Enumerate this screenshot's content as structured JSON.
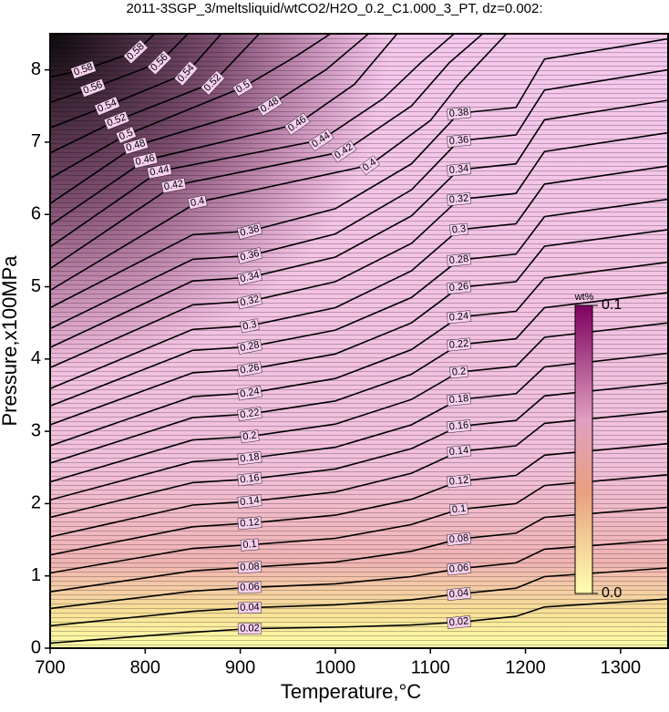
{
  "chart_data": {
    "type": "contour",
    "title": "2011-3SGP_3/meltsliquid/wtCO2/H2O_0.2_C1.000_3_PT, dz=0.002:",
    "x_label": "Temperature,°C",
    "y_label": "Pressure,x100MPa",
    "xlim": [
      700,
      1350
    ],
    "ylim": [
      0,
      8.5
    ],
    "xticks": [
      700,
      800,
      900,
      1000,
      1100,
      1200,
      1300
    ],
    "yticks": [
      0,
      1,
      2,
      3,
      4,
      5,
      6,
      7,
      8
    ],
    "contours": [
      {
        "level": 0.02,
        "x": [
          700,
          850,
          910,
          1000,
          1080,
          1130,
          1190,
          1220,
          1350
        ],
        "y": [
          0.07,
          0.22,
          0.27,
          0.29,
          0.32,
          0.36,
          0.44,
          0.57,
          0.68
        ]
      },
      {
        "level": 0.04,
        "x": [
          700,
          850,
          910,
          1000,
          1080,
          1130,
          1190,
          1220,
          1350
        ],
        "y": [
          0.31,
          0.51,
          0.56,
          0.6,
          0.67,
          0.75,
          0.83,
          0.99,
          1.11
        ]
      },
      {
        "level": 0.06,
        "x": [
          700,
          850,
          910,
          1000,
          1080,
          1130,
          1190,
          1220,
          1350
        ],
        "y": [
          0.55,
          0.79,
          0.84,
          0.89,
          0.99,
          1.1,
          1.18,
          1.37,
          1.5
        ]
      },
      {
        "level": 0.08,
        "x": [
          700,
          850,
          910,
          1000,
          1080,
          1130,
          1190,
          1220,
          1350
        ],
        "y": [
          0.78,
          1.07,
          1.12,
          1.19,
          1.34,
          1.51,
          1.59,
          1.81,
          1.95
        ]
      },
      {
        "level": 0.1,
        "x": [
          700,
          850,
          910,
          1000,
          1080,
          1130,
          1190,
          1220,
          1350
        ],
        "y": [
          1.04,
          1.38,
          1.43,
          1.52,
          1.71,
          1.92,
          2.0,
          2.25,
          2.4
        ]
      },
      {
        "level": 0.12,
        "x": [
          700,
          850,
          910,
          1000,
          1080,
          1130,
          1190,
          1220,
          1350
        ],
        "y": [
          1.29,
          1.68,
          1.73,
          1.84,
          2.06,
          2.31,
          2.39,
          2.67,
          2.83
        ]
      },
      {
        "level": 0.14,
        "x": [
          700,
          850,
          910,
          1000,
          1080,
          1130,
          1190,
          1220,
          1350
        ],
        "y": [
          1.54,
          1.98,
          2.03,
          2.16,
          2.42,
          2.72,
          2.8,
          3.11,
          3.28
        ]
      },
      {
        "level": 0.16,
        "x": [
          700,
          850,
          910,
          1000,
          1080,
          1130,
          1190,
          1220,
          1350
        ],
        "y": [
          1.81,
          2.29,
          2.34,
          2.48,
          2.76,
          3.07,
          3.15,
          3.49,
          3.67
        ]
      },
      {
        "level": 0.18,
        "x": [
          700,
          850,
          910,
          1000,
          1080,
          1130,
          1190,
          1220,
          1350
        ],
        "y": [
          2.05,
          2.58,
          2.63,
          2.78,
          3.09,
          3.44,
          3.52,
          3.89,
          4.08
        ]
      },
      {
        "level": 0.2,
        "x": [
          700,
          850,
          910,
          1000,
          1080,
          1130,
          1190,
          1220,
          1350
        ],
        "y": [
          2.3,
          2.88,
          2.93,
          3.1,
          3.44,
          3.82,
          3.9,
          4.3,
          4.5
        ]
      },
      {
        "level": 0.22,
        "x": [
          700,
          850,
          910,
          1000,
          1080,
          1130,
          1190,
          1220,
          1350
        ],
        "y": [
          2.56,
          3.19,
          3.24,
          3.42,
          3.79,
          4.2,
          4.28,
          4.71,
          4.92
        ]
      },
      {
        "level": 0.24,
        "x": [
          700,
          850,
          910,
          1000,
          1080,
          1130,
          1190,
          1220,
          1350
        ],
        "y": [
          2.8,
          3.48,
          3.53,
          3.73,
          4.13,
          4.58,
          4.66,
          5.12,
          5.34
        ]
      },
      {
        "level": 0.26,
        "x": [
          700,
          850,
          910,
          1000,
          1080,
          1130,
          1190,
          1220,
          1350
        ],
        "y": [
          3.09,
          3.81,
          3.86,
          4.07,
          4.5,
          4.99,
          5.07,
          5.56,
          5.79
        ]
      },
      {
        "level": 0.28,
        "x": [
          700,
          850,
          910,
          1000,
          1080,
          1130,
          1190,
          1220,
          1350
        ],
        "y": [
          3.35,
          4.12,
          4.17,
          4.4,
          4.85,
          5.37,
          5.45,
          5.97,
          6.21
        ]
      },
      {
        "level": 0.3,
        "x": [
          700,
          850,
          910,
          1000,
          1080,
          1130,
          1190,
          1220,
          1350
        ],
        "y": [
          3.59,
          4.41,
          4.46,
          4.71,
          5.22,
          5.79,
          5.87,
          6.42,
          6.67
        ]
      },
      {
        "level": 0.32,
        "x": [
          700,
          850,
          910,
          1000,
          1080,
          1130,
          1190,
          1220,
          1350
        ],
        "y": [
          3.88,
          4.75,
          4.8,
          5.07,
          5.6,
          6.21,
          6.29,
          6.87,
          7.13
        ]
      },
      {
        "level": 0.34,
        "x": [
          700,
          850,
          910,
          1000,
          1080,
          1130,
          1190,
          1220,
          1350
        ],
        "y": [
          4.16,
          5.08,
          5.13,
          5.41,
          5.98,
          6.62,
          6.7,
          7.31,
          7.58
        ]
      },
      {
        "level": 0.36,
        "x": [
          700,
          850,
          910,
          1000,
          1080,
          1130,
          1190,
          1220,
          1350
        ],
        "y": [
          4.42,
          5.38,
          5.43,
          5.73,
          6.34,
          7.02,
          7.1,
          7.72,
          8.0
        ]
      },
      {
        "level": 0.38,
        "x": [
          700,
          850,
          910,
          1000,
          1080,
          1130,
          1190,
          1220,
          1350
        ],
        "y": [
          4.71,
          5.72,
          5.77,
          6.08,
          6.7,
          7.4,
          7.48,
          8.15,
          8.43
        ]
      },
      {
        "level": 0.4,
        "x": [
          700,
          855,
          1036,
          1100,
          1130,
          1180
        ],
        "y": [
          4.95,
          6.17,
          6.68,
          7.3,
          7.8,
          8.5
        ]
      },
      {
        "level": 0.42,
        "x": [
          700,
          830,
          1009,
          1080,
          1120,
          1155
        ],
        "y": [
          5.25,
          6.4,
          6.87,
          7.5,
          8.1,
          8.5
        ]
      },
      {
        "level": 0.44,
        "x": [
          700,
          815,
          985,
          1050,
          1090,
          1125
        ],
        "y": [
          5.55,
          6.6,
          7.03,
          7.6,
          8.1,
          8.5
        ]
      },
      {
        "level": 0.46,
        "x": [
          700,
          800,
          960,
          1020,
          1065
        ],
        "y": [
          5.85,
          6.75,
          7.25,
          7.8,
          8.5
        ]
      },
      {
        "level": 0.48,
        "x": [
          700,
          790,
          931,
          990,
          1035
        ],
        "y": [
          6.15,
          6.95,
          7.51,
          8.0,
          8.5
        ]
      },
      {
        "level": 0.5,
        "x": [
          700,
          780,
          903,
          960,
          995
        ],
        "y": [
          6.5,
          7.1,
          7.76,
          8.2,
          8.5
        ]
      },
      {
        "level": 0.52,
        "x": [
          700,
          770,
          871,
          920
        ],
        "y": [
          6.85,
          7.3,
          7.82,
          8.5
        ]
      },
      {
        "level": 0.54,
        "x": [
          700,
          760,
          843,
          880
        ],
        "y": [
          7.2,
          7.5,
          7.95,
          8.5
        ]
      },
      {
        "level": 0.56,
        "x": [
          700,
          745,
          815,
          845
        ],
        "y": [
          7.55,
          7.75,
          8.1,
          8.5
        ]
      },
      {
        "level": 0.58,
        "x": [
          700,
          735,
          790,
          810
        ],
        "y": [
          7.9,
          8.0,
          8.25,
          8.5
        ]
      }
    ],
    "colorbar": {
      "label": "wt%",
      "lim": [
        0,
        0.1
      ],
      "ticks": [
        {
          "value": 0,
          "label": "0.0"
        },
        0.1
      ]
    }
  }
}
